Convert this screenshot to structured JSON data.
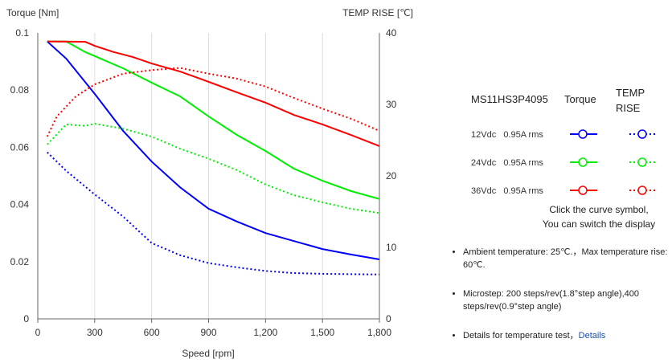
{
  "chart_data": {
    "type": "line",
    "xlabel": "Speed [rpm]",
    "ylabel": "Torque  [Nm]",
    "y2label": "TEMP RISE [℃]",
    "xlim": [
      0,
      1800
    ],
    "ylim": [
      0,
      0.1
    ],
    "y2lim": [
      0,
      40
    ],
    "xticks": [
      "0",
      "300",
      "600",
      "900",
      "1,200",
      "1,500",
      "1,800"
    ],
    "yticks": [
      "0",
      "0.02",
      "0.04",
      "0.06",
      "0.08",
      "0.1"
    ],
    "y2ticks": [
      "0",
      "10",
      "20",
      "30",
      "40"
    ],
    "grid": "vertical",
    "series": [
      {
        "name": "12Vdc Torque",
        "axis": "left",
        "color": "#0000ff",
        "style": "solid",
        "x": [
          50,
          150,
          300,
          450,
          600,
          750,
          900,
          1050,
          1200,
          1350,
          1500,
          1650,
          1800
        ],
        "y": [
          0.097,
          0.091,
          0.0787,
          0.0657,
          0.055,
          0.046,
          0.0385,
          0.034,
          0.03,
          0.0272,
          0.0244,
          0.0225,
          0.0208
        ]
      },
      {
        "name": "24Vdc Torque",
        "axis": "left",
        "color": "#00ee00",
        "style": "solid",
        "x": [
          50,
          150,
          250,
          300,
          450,
          600,
          750,
          900,
          1050,
          1200,
          1350,
          1500,
          1650,
          1800
        ],
        "y": [
          0.097,
          0.097,
          0.0933,
          0.0919,
          0.0876,
          0.0826,
          0.0778,
          0.0708,
          0.0643,
          0.0587,
          0.0525,
          0.0483,
          0.0447,
          0.0419
        ]
      },
      {
        "name": "36Vdc Torque",
        "axis": "left",
        "color": "#ff0000",
        "style": "solid",
        "x": [
          50,
          250,
          300,
          400,
          500,
          600,
          750,
          900,
          1050,
          1200,
          1350,
          1500,
          1650,
          1800
        ],
        "y": [
          0.097,
          0.0969,
          0.0955,
          0.0933,
          0.0916,
          0.0893,
          0.0865,
          0.0829,
          0.0792,
          0.0756,
          0.0713,
          0.068,
          0.0643,
          0.0604
        ]
      },
      {
        "name": "12Vdc TEMP RISE",
        "axis": "right",
        "color": "#0000ff",
        "style": "dotted",
        "x": [
          50,
          150,
          300,
          450,
          600,
          750,
          900,
          1050,
          1200,
          1350,
          1500,
          1800
        ],
        "y": [
          23.3,
          20.7,
          17.4,
          14.3,
          10.6,
          8.9,
          7.8,
          7.2,
          6.7,
          6.4,
          6.3,
          6.2
        ]
      },
      {
        "name": "24Vdc TEMP RISE",
        "axis": "right",
        "color": "#00ee00",
        "style": "dotted",
        "x": [
          50,
          150,
          250,
          300,
          450,
          600,
          750,
          900,
          1050,
          1200,
          1350,
          1500,
          1650,
          1800
        ],
        "y": [
          24.4,
          27.2,
          27.0,
          27.3,
          26.6,
          25.5,
          23.8,
          22.4,
          20.8,
          18.8,
          17.3,
          16.3,
          15.4,
          14.8
        ]
      },
      {
        "name": "36Vdc TEMP RISE",
        "axis": "right",
        "color": "#ff0000",
        "style": "dotted",
        "x": [
          50,
          100,
          200,
          300,
          450,
          600,
          750,
          900,
          1050,
          1200,
          1350,
          1500,
          1650,
          1800
        ],
        "y": [
          25.5,
          28.3,
          31.1,
          32.8,
          34.3,
          34.8,
          35.1,
          34.3,
          33.6,
          32.5,
          30.9,
          29.4,
          28.0,
          26.3
        ]
      }
    ]
  },
  "legend": {
    "model": "MS11HS3P4095",
    "torque": "Torque",
    "temp": "TEMP RISE",
    "rows": [
      {
        "label": "12Vdc   0.95A rms",
        "color": "#0000ff"
      },
      {
        "label": "24Vdc   0.95A rms",
        "color": "#00ee00"
      },
      {
        "label": "36Vdc   0.95A rms",
        "color": "#ff0000"
      }
    ],
    "hint1": "Click the curve symbol,",
    "hint2": "You can switch the display"
  },
  "notes": {
    "n1": "Ambient temperature: 25℃.，Max temperature rise: 60℃.",
    "n2": "Microstep: 200 steps/rev(1.8°step angle),400 steps/rev(0.9°step angle)",
    "n3": "Details for temperature test，",
    "link": "Details"
  }
}
